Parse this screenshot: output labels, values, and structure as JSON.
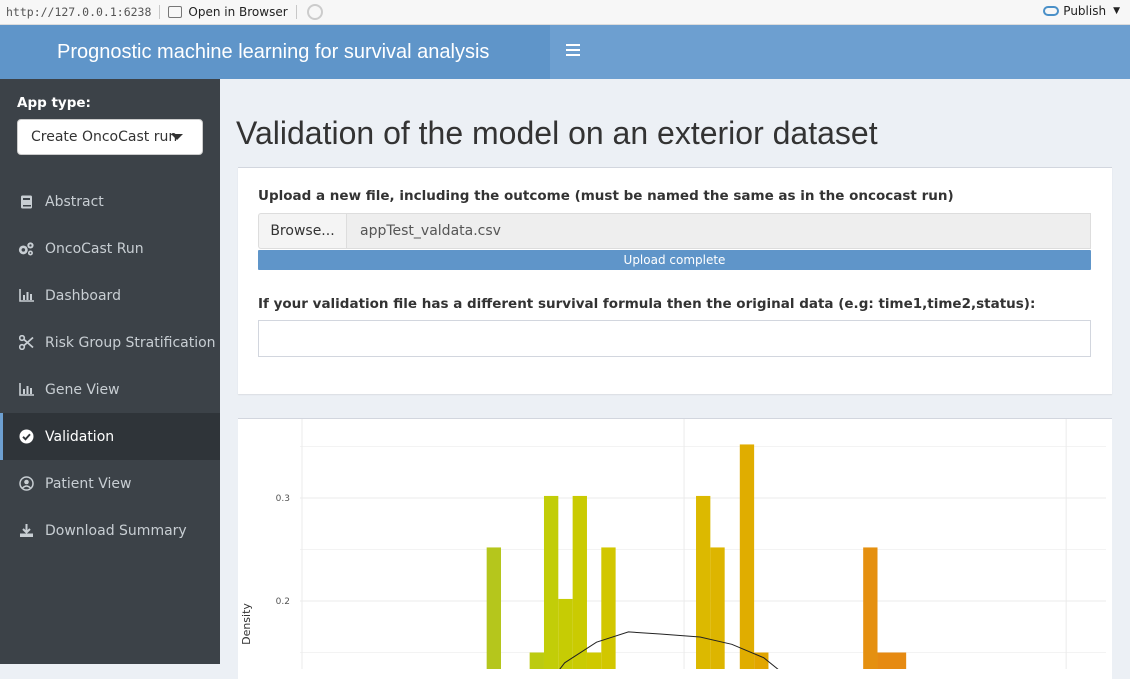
{
  "viewer": {
    "url": "http://127.0.0.1:6238",
    "open_in_browser": "Open in Browser",
    "publish": "Publish"
  },
  "header": {
    "title": "Prognostic machine learning for survival analysis"
  },
  "sidebar": {
    "app_type_label": "App type:",
    "app_type_value": "Create OncoCast run",
    "items": [
      {
        "label": "Abstract",
        "icon": "book-icon"
      },
      {
        "label": "OncoCast Run",
        "icon": "cogs-icon"
      },
      {
        "label": "Dashboard",
        "icon": "bar-chart-icon"
      },
      {
        "label": "Risk Group Stratification",
        "icon": "scissors-icon"
      },
      {
        "label": "Gene View",
        "icon": "bar-chart-icon"
      },
      {
        "label": "Validation",
        "icon": "check-circle-icon",
        "active": true
      },
      {
        "label": "Patient View",
        "icon": "user-circle-icon"
      },
      {
        "label": "Download Summary",
        "icon": "download-icon"
      }
    ]
  },
  "main": {
    "title": "Validation of the model on an exterior dataset",
    "upload_label": "Upload a new file, including the outcome (must be named the same as in the oncocast run)",
    "browse_label": "Browse...",
    "file_name": "appTest_valdata.csv",
    "upload_status": "Upload complete",
    "formula_label": "If your validation file has a different survival formula then the original data (e.g: time1,time2,status):",
    "formula_value": ""
  },
  "chart_data": {
    "type": "bar",
    "ylabel": "Density",
    "yticks": [
      0.2,
      0.3
    ],
    "ylim": [
      0.11,
      0.37
    ],
    "xlim": [
      0,
      1
    ],
    "grid": true,
    "bars": [
      {
        "x": 0.232,
        "width": 0.018,
        "value": 0.252,
        "color": "#b5c61c"
      },
      {
        "x": 0.286,
        "width": 0.018,
        "value": 0.15,
        "color": "#bccb10"
      },
      {
        "x": 0.304,
        "width": 0.018,
        "value": 0.302,
        "color": "#c2cd08"
      },
      {
        "x": 0.322,
        "width": 0.018,
        "value": 0.202,
        "color": "#c6cc04"
      },
      {
        "x": 0.34,
        "width": 0.018,
        "value": 0.302,
        "color": "#cacb02"
      },
      {
        "x": 0.358,
        "width": 0.018,
        "value": 0.15,
        "color": "#cfc900"
      },
      {
        "x": 0.376,
        "width": 0.018,
        "value": 0.252,
        "color": "#d2c700"
      },
      {
        "x": 0.495,
        "width": 0.018,
        "value": 0.302,
        "color": "#dcb900"
      },
      {
        "x": 0.513,
        "width": 0.018,
        "value": 0.252,
        "color": "#ddb500"
      },
      {
        "x": 0.55,
        "width": 0.018,
        "value": 0.352,
        "color": "#e0ad00"
      },
      {
        "x": 0.568,
        "width": 0.018,
        "value": 0.15,
        "color": "#e2a600"
      },
      {
        "x": 0.705,
        "width": 0.018,
        "value": 0.252,
        "color": "#e59010"
      },
      {
        "x": 0.723,
        "width": 0.036,
        "value": 0.15,
        "color": "#e68a12"
      }
    ],
    "density_curve": {
      "x": [
        0.29,
        0.33,
        0.37,
        0.41,
        0.45,
        0.5,
        0.54,
        0.58,
        0.62
      ],
      "y": [
        0.1,
        0.14,
        0.16,
        0.17,
        0.168,
        0.165,
        0.158,
        0.145,
        0.12
      ]
    }
  }
}
